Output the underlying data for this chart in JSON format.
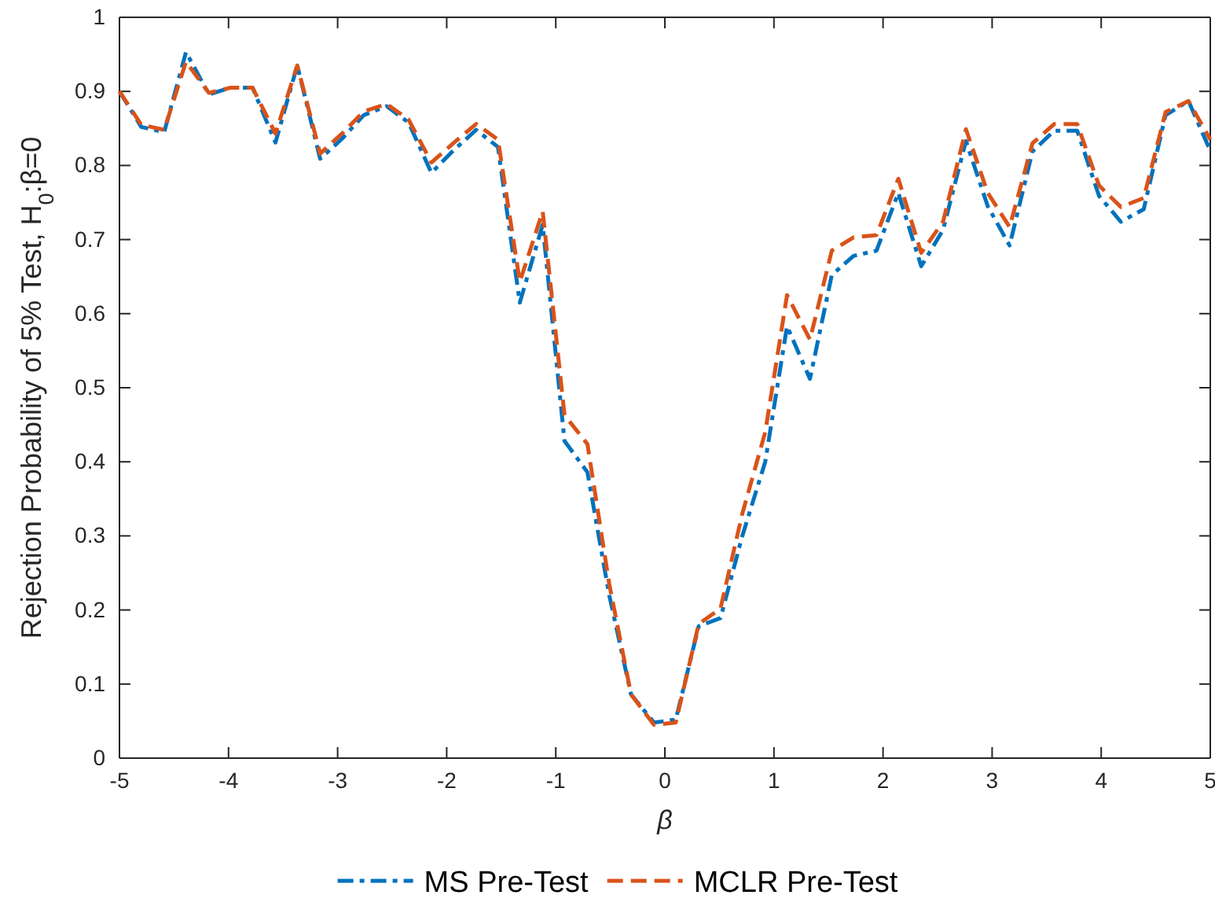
{
  "chart_data": {
    "type": "line",
    "xlabel": "β",
    "ylabel": "Rejection Probability of 5% Test, H$_{0}$:β=0",
    "x": [
      -5,
      -4.8,
      -4.59,
      -4.39,
      -4.18,
      -3.98,
      -3.78,
      -3.57,
      -3.37,
      -3.16,
      -2.96,
      -2.76,
      -2.55,
      -2.35,
      -2.14,
      -1.94,
      -1.73,
      -1.53,
      -1.33,
      -1.12,
      -0.92,
      -0.71,
      -0.51,
      -0.31,
      -0.1,
      0.1,
      0.31,
      0.51,
      0.71,
      0.92,
      1.12,
      1.33,
      1.53,
      1.73,
      1.94,
      2.14,
      2.35,
      2.55,
      2.76,
      2.96,
      3.16,
      3.37,
      3.57,
      3.78,
      3.98,
      4.18,
      4.39,
      4.59,
      4.8,
      5
    ],
    "series": [
      {
        "name": "MS Pre-Test",
        "color": "#0072bd",
        "line_style": "dashdot",
        "values": [
          0.9,
          0.852,
          0.845,
          0.953,
          0.896,
          0.905,
          0.905,
          0.831,
          0.935,
          0.809,
          0.836,
          0.868,
          0.88,
          0.858,
          0.79,
          0.82,
          0.848,
          0.825,
          0.615,
          0.72,
          0.428,
          0.386,
          0.22,
          0.086,
          0.048,
          0.052,
          0.178,
          0.189,
          0.3,
          0.4,
          0.583,
          0.512,
          0.652,
          0.678,
          0.685,
          0.763,
          0.664,
          0.713,
          0.833,
          0.745,
          0.692,
          0.819,
          0.847,
          0.847,
          0.759,
          0.724,
          0.741,
          0.868,
          0.887,
          0.82
        ]
      },
      {
        "name": "MCLR Pre-Test",
        "color": "#d95319",
        "line_style": "dashed",
        "values": [
          0.9,
          0.855,
          0.848,
          0.94,
          0.898,
          0.905,
          0.905,
          0.843,
          0.935,
          0.816,
          0.843,
          0.873,
          0.883,
          0.862,
          0.804,
          0.83,
          0.856,
          0.835,
          0.643,
          0.738,
          0.463,
          0.424,
          0.235,
          0.086,
          0.045,
          0.048,
          0.181,
          0.202,
          0.33,
          0.44,
          0.625,
          0.565,
          0.685,
          0.703,
          0.706,
          0.782,
          0.682,
          0.724,
          0.849,
          0.763,
          0.717,
          0.83,
          0.856,
          0.856,
          0.773,
          0.744,
          0.756,
          0.872,
          0.887,
          0.835
        ]
      }
    ],
    "xlim": [
      -5,
      5
    ],
    "xticks": [
      -5,
      -4,
      -3,
      -2,
      -1,
      0,
      1,
      2,
      3,
      4,
      5
    ],
    "ylim": [
      0,
      1
    ],
    "yticks": [
      0,
      0.1,
      0.2,
      0.3,
      0.4,
      0.5,
      0.6,
      0.7,
      0.8,
      0.9,
      1
    ],
    "grid": false,
    "legend": "bottom"
  }
}
